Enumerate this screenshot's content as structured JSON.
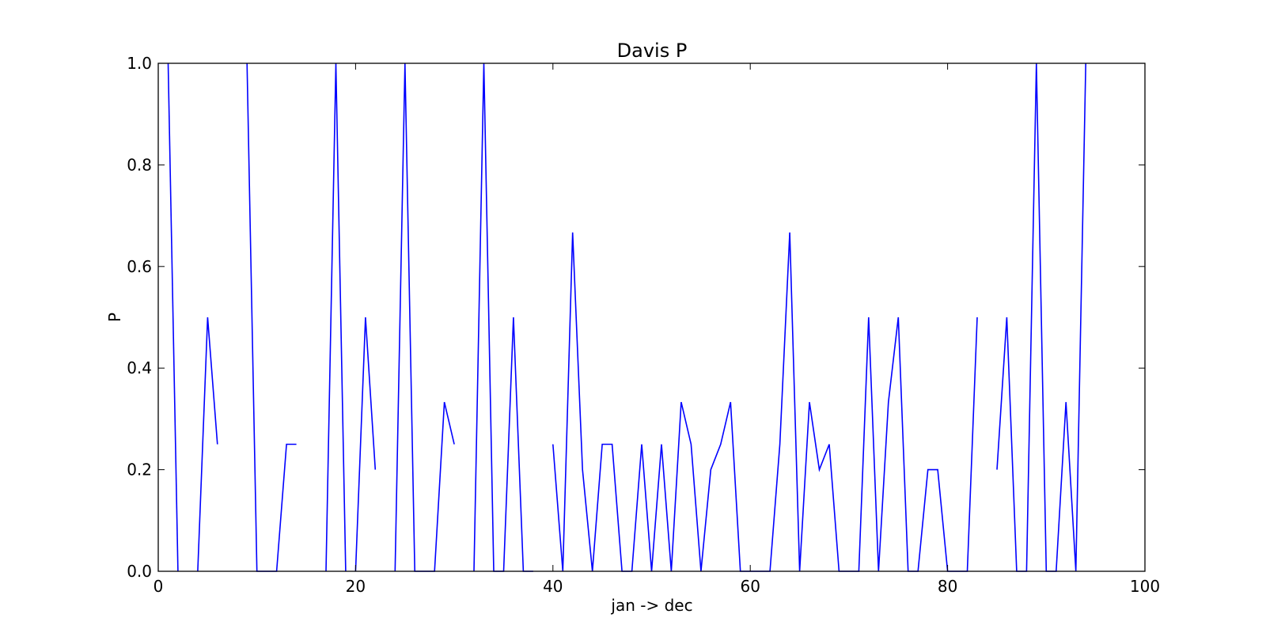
{
  "chart_data": {
    "type": "line",
    "title": "Davis P",
    "xlabel": "jan -> dec",
    "ylabel": "P",
    "xlim": [
      0,
      100
    ],
    "ylim": [
      0.0,
      1.0
    ],
    "x_ticks": [
      "0",
      "20",
      "40",
      "60",
      "80",
      "100"
    ],
    "y_ticks": [
      "0.0",
      "0.2",
      "0.4",
      "0.6",
      "0.8",
      "1.0"
    ],
    "grid": false,
    "series": [
      {
        "color": "#0000ff",
        "segments": [
          [
            [
              1,
              1.0
            ],
            [
              2,
              0.0
            ]
          ],
          [
            [
              4,
              0.0
            ],
            [
              5,
              0.5
            ],
            [
              6,
              0.25
            ]
          ],
          [
            [
              9,
              1.0
            ],
            [
              10,
              0.0
            ],
            [
              11,
              0.0
            ],
            [
              12,
              0.0
            ],
            [
              13,
              0.25
            ],
            [
              14,
              0.25
            ]
          ],
          [
            [
              17,
              0.0
            ],
            [
              18,
              1.0
            ],
            [
              19,
              0.0
            ]
          ],
          [
            [
              20,
              0.0
            ],
            [
              21,
              0.5
            ],
            [
              22,
              0.2
            ]
          ],
          [
            [
              24,
              0.0
            ],
            [
              25,
              1.0
            ],
            [
              26,
              0.0
            ],
            [
              27,
              0.0
            ],
            [
              28,
              0.0
            ],
            [
              29,
              0.333
            ],
            [
              30,
              0.25
            ]
          ],
          [
            [
              32,
              0.0
            ],
            [
              33,
              1.0
            ],
            [
              34,
              0.0
            ],
            [
              35,
              0.0
            ],
            [
              36,
              0.5
            ],
            [
              37,
              0.0
            ],
            [
              38,
              0.0
            ]
          ],
          [
            [
              40,
              0.25
            ],
            [
              41,
              0.0
            ],
            [
              42,
              0.667
            ],
            [
              43,
              0.2
            ],
            [
              44,
              0.0
            ],
            [
              45,
              0.25
            ],
            [
              46,
              0.25
            ],
            [
              47,
              0.0
            ],
            [
              48,
              0.0
            ],
            [
              49,
              0.25
            ],
            [
              50,
              0.0
            ],
            [
              51,
              0.25
            ],
            [
              52,
              0.0
            ],
            [
              53,
              0.333
            ],
            [
              54,
              0.25
            ],
            [
              55,
              0.0
            ],
            [
              56,
              0.2
            ],
            [
              57,
              0.25
            ],
            [
              58,
              0.333
            ],
            [
              59,
              0.0
            ],
            [
              60,
              0.0
            ],
            [
              61,
              0.0
            ],
            [
              62,
              0.0
            ],
            [
              63,
              0.25
            ],
            [
              64,
              0.667
            ],
            [
              65,
              0.0
            ],
            [
              66,
              0.333
            ],
            [
              67,
              0.2
            ],
            [
              68,
              0.25
            ],
            [
              69,
              0.0
            ],
            [
              70,
              0.0
            ],
            [
              71,
              0.0
            ],
            [
              72,
              0.5
            ],
            [
              73,
              0.0
            ],
            [
              74,
              0.333
            ],
            [
              75,
              0.5
            ],
            [
              76,
              0.0
            ],
            [
              77,
              0.0
            ],
            [
              78,
              0.2
            ],
            [
              79,
              0.2
            ],
            [
              80,
              0.0
            ],
            [
              81,
              0.0
            ],
            [
              82,
              0.0
            ],
            [
              83,
              0.5
            ]
          ],
          [
            [
              85,
              0.2
            ],
            [
              86,
              0.5
            ],
            [
              87,
              0.0
            ],
            [
              88,
              0.0
            ],
            [
              89,
              1.0
            ],
            [
              90,
              0.0
            ],
            [
              91,
              0.0
            ],
            [
              92,
              0.333
            ],
            [
              93,
              0.0
            ],
            [
              94,
              1.0
            ]
          ]
        ]
      }
    ]
  }
}
